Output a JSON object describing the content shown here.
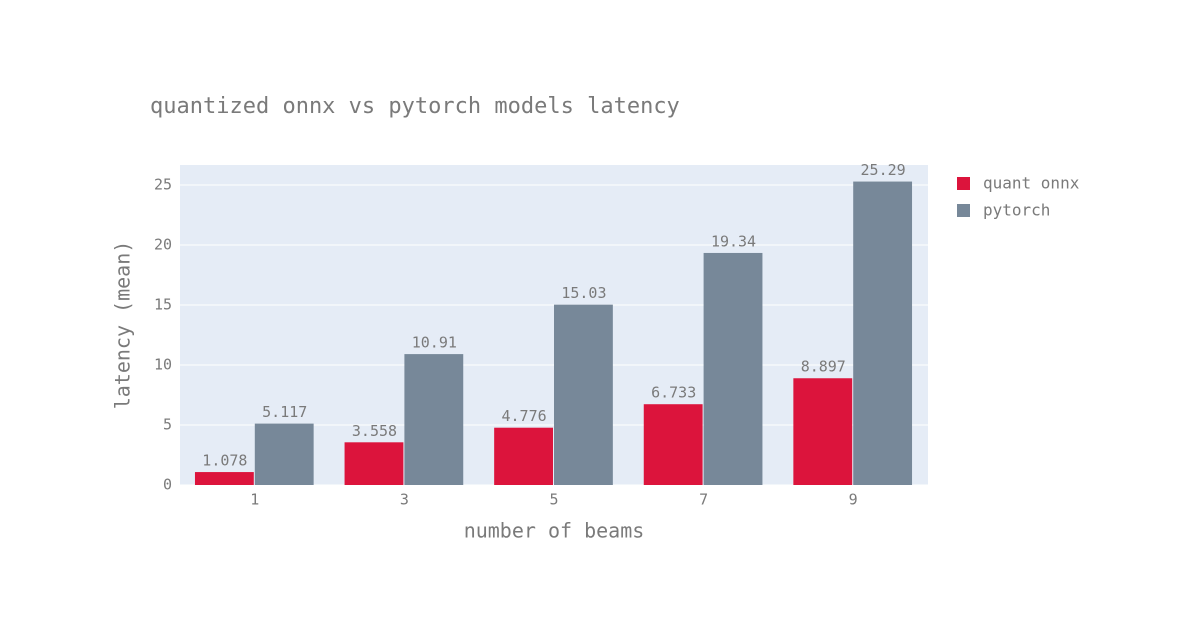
{
  "chart_data": {
    "type": "bar",
    "title": "quantized onnx vs pytorch models latency",
    "x_label": "number of beams",
    "y_label": "latency (mean)",
    "x": [
      1,
      3,
      5,
      7,
      9
    ],
    "series": [
      {
        "name": "quant onnx",
        "color": "#dc143c",
        "values": [
          1.078,
          3.558,
          4.776,
          6.733,
          8.897
        ]
      },
      {
        "name": "pytorch",
        "color": "#778899",
        "values": [
          5.117,
          10.91,
          15.03,
          19.34,
          25.29
        ]
      }
    ],
    "xlim": [
      0,
      10
    ],
    "xticks": [
      1,
      3,
      5,
      7,
      9
    ],
    "ylim": [
      0,
      26.67
    ],
    "yticks": [
      0,
      5,
      10,
      15,
      20,
      25
    ],
    "grid": true
  }
}
